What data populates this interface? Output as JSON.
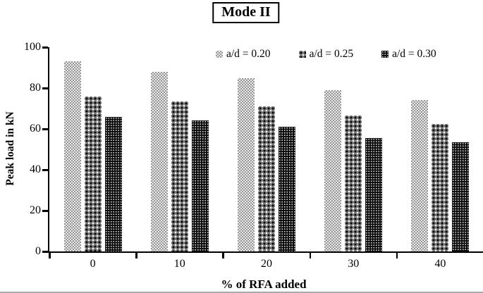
{
  "chart_data": {
    "type": "bar",
    "title": "Mode II",
    "xlabel": "% of RFA added",
    "ylabel": "Peak load in kN",
    "categories": [
      "0",
      "10",
      "20",
      "30",
      "40"
    ],
    "series": [
      {
        "name": "a/d = 0.20",
        "values": [
          93,
          88,
          85,
          79,
          74
        ]
      },
      {
        "name": "a/d = 0.25",
        "values": [
          76,
          73.5,
          71,
          66.5,
          62.5
        ]
      },
      {
        "name": "a/d = 0.30",
        "values": [
          66,
          64,
          61,
          55.5,
          53.5
        ]
      }
    ],
    "ylim": [
      0,
      100
    ],
    "yticks": [
      0,
      20,
      40,
      60,
      80,
      100
    ],
    "grid": false,
    "legend_position": "top-inside-row",
    "bar_patterns": [
      "light-gray-checker",
      "dark-diamond-with-dots",
      "black-with-white-dots"
    ],
    "colors": {
      "axis": "#000000",
      "text": "#000000",
      "background": "#ffffff",
      "series_tones": [
        "#c9c9c9",
        "#6e6e6e",
        "#141414"
      ]
    }
  }
}
